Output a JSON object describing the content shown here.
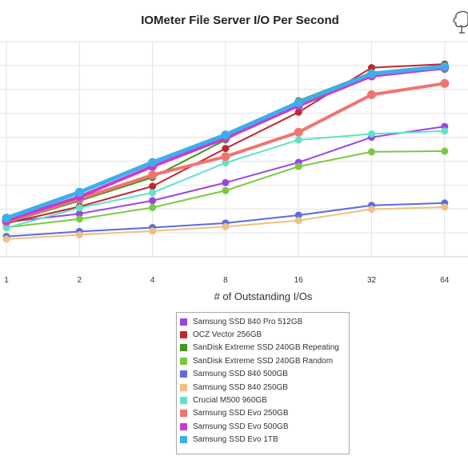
{
  "chart_data": {
    "type": "line",
    "title": "IOMeter File Server I/O Per Second",
    "xlabel": "# of Outstanding I/Os",
    "ylabel": "",
    "x": [
      "1",
      "2",
      "4",
      "8",
      "16",
      "32",
      "64"
    ],
    "ylim": [
      0,
      9000
    ],
    "grid": true,
    "legend_position": "bottom",
    "series": [
      {
        "name": "Samsung SSD 840 Pro 512GB",
        "color": "#9b45e4",
        "values": [
          1450,
          1800,
          2350,
          3100,
          3950,
          5000,
          5450
        ]
      },
      {
        "name": "OCZ Vector 256GB",
        "color": "#c0282d",
        "values": [
          1400,
          2100,
          2950,
          4530,
          6050,
          7910,
          8060
        ]
      },
      {
        "name": "SanDisk Extreme SSD 240GB Repeating",
        "color": "#44951d",
        "values": [
          1420,
          2340,
          3320,
          4890,
          6530,
          7710,
          7840
        ]
      },
      {
        "name": "SanDisk Extreme SSD 240GB Random",
        "color": "#7ac943",
        "values": [
          1230,
          1580,
          2060,
          2770,
          3780,
          4390,
          4420
        ]
      },
      {
        "name": "Samsung SSD 840 500GB",
        "color": "#5b6ce0",
        "values": [
          850,
          1060,
          1220,
          1410,
          1740,
          2150,
          2250
        ]
      },
      {
        "name": "Samsung SSD 840 250GB",
        "color": "#efc083",
        "values": [
          740,
          920,
          1080,
          1260,
          1520,
          1990,
          2080
        ]
      },
      {
        "name": "Crucial M500 960GB",
        "color": "#5ee2c8",
        "values": [
          1210,
          2050,
          2680,
          3930,
          4890,
          5140,
          5260
        ]
      },
      {
        "name": "Samsung SSD Evo 250GB",
        "color": "#f07470",
        "values": [
          1460,
          2420,
          3420,
          4190,
          5210,
          6780,
          7250
        ]
      },
      {
        "name": "Samsung SSD Evo 500GB",
        "color": "#c23ed1",
        "values": [
          1510,
          2510,
          3780,
          4960,
          6320,
          7560,
          7900
        ]
      },
      {
        "name": "Samsung SSD Evo 1TB",
        "color": "#3eaee9",
        "values": [
          1620,
          2700,
          3950,
          5100,
          6450,
          7660,
          7960
        ]
      }
    ]
  }
}
